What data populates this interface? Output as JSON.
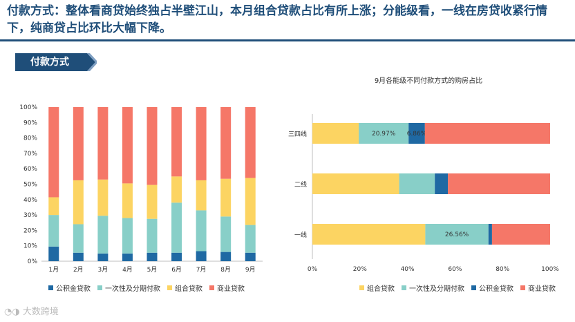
{
  "header": {
    "title": "付款方式：整体看商贷始终独占半壁江山，本月组合贷款占比有所上涨；分能级看，一线在房贷收紧行情下，纯商贷占比环比大幅下降。"
  },
  "section": {
    "label": "付款方式"
  },
  "colors": {
    "公积金贷款": "#1f69a3",
    "一次性及分期付款": "#88cfc8",
    "组合贷款": "#fcd462",
    "商业贷款": "#f57768"
  },
  "left_legend": [
    "公积金贷款",
    "一次性及分期付款",
    "组合贷款",
    "商业贷款"
  ],
  "right_legend": [
    "组合贷款",
    "一次性及分期付款",
    "公积金贷款",
    "商业贷款"
  ],
  "footer": {
    "logo_text": "大数跨境"
  },
  "chart_data": [
    {
      "type": "bar",
      "stacked": true,
      "orientation": "vertical",
      "title": "",
      "categories": [
        "1月",
        "2月",
        "3月",
        "4月",
        "5月",
        "6月",
        "7月",
        "8月",
        "9月"
      ],
      "y_ticks": [
        "0%",
        "10%",
        "20%",
        "30%",
        "40%",
        "50%",
        "60%",
        "70%",
        "80%",
        "90%",
        "100%"
      ],
      "ylim": [
        0,
        100
      ],
      "series": [
        {
          "name": "公积金贷款",
          "values": [
            9.5,
            5.5,
            5,
            5,
            5.5,
            5.5,
            6.5,
            6,
            5.5
          ]
        },
        {
          "name": "一次性及分期付款",
          "values": [
            20.5,
            18.5,
            24.5,
            23,
            22,
            32.5,
            26.5,
            23,
            18
          ]
        },
        {
          "name": "组合贷款",
          "values": [
            11.5,
            28.5,
            23.5,
            22.5,
            22,
            17,
            19.5,
            24.5,
            30.5
          ]
        },
        {
          "name": "商业贷款",
          "values": [
            58.5,
            47.5,
            47,
            49.5,
            50.5,
            45,
            47.5,
            46.5,
            46
          ]
        }
      ],
      "legend_position": "bottom"
    },
    {
      "type": "bar",
      "stacked": true,
      "orientation": "horizontal",
      "title": "9月各能级不同付款方式的购房占比",
      "categories": [
        "三四线",
        "二线",
        "一线"
      ],
      "x_ticks": [
        "0%",
        "20%",
        "40%",
        "60%",
        "80%",
        "100%"
      ],
      "xlim": [
        0,
        100
      ],
      "series": [
        {
          "name": "组合贷款",
          "values": [
            19.5,
            36.5,
            47.5
          ],
          "labels": [
            "",
            "",
            ""
          ]
        },
        {
          "name": "一次性及分期付款",
          "values": [
            20.97,
            15,
            26.56
          ],
          "labels": [
            "20.97%",
            "",
            "26.56%"
          ]
        },
        {
          "name": "公积金贷款",
          "values": [
            6.86,
            5.5,
            1.5
          ],
          "labels": [
            "6.86%",
            "",
            ""
          ]
        },
        {
          "name": "商业贷款",
          "values": [
            52.67,
            43,
            24.44
          ],
          "labels": [
            "",
            "",
            ""
          ]
        }
      ],
      "legend_position": "bottom"
    }
  ]
}
